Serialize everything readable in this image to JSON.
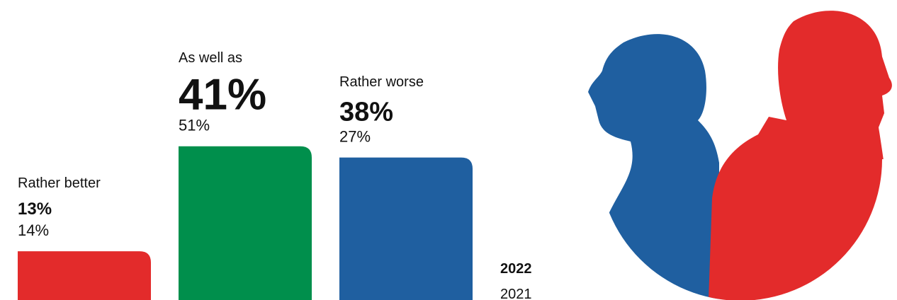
{
  "chart_data": {
    "type": "bar",
    "categories": [
      "Rather better",
      "As well as",
      "Rather worse"
    ],
    "colors": [
      "#e32b2b",
      "#008f4c",
      "#1f5fa0"
    ],
    "series": [
      {
        "name": "2022",
        "values": [
          13,
          41,
          38
        ],
        "value_labels": [
          "13%",
          "41%",
          "38%"
        ]
      },
      {
        "name": "2021",
        "values": [
          14,
          51,
          27
        ],
        "value_labels": [
          "14%",
          "51%",
          "27%"
        ]
      }
    ],
    "ylim": [
      0,
      80
    ]
  }
}
